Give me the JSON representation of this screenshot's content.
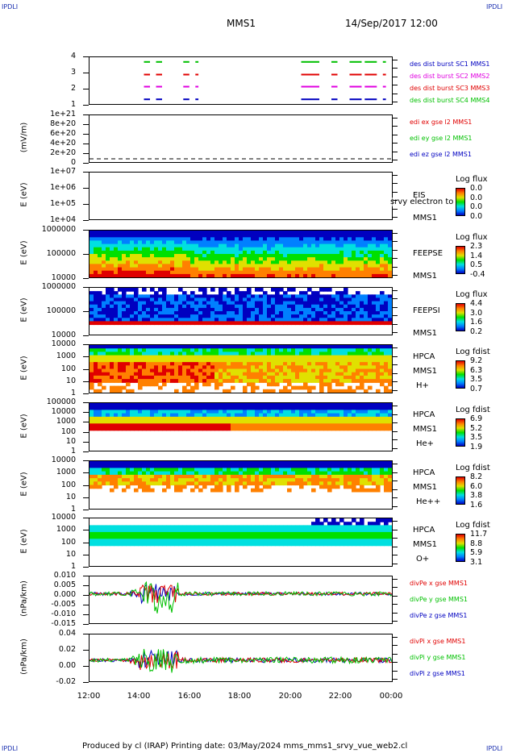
{
  "corners": {
    "tl": "IPDLI",
    "tr": "IPDLI",
    "bl": "IPDLI",
    "br": "IPDLI"
  },
  "header": {
    "mission": "MMS1",
    "date": "14/Sep/2017 12:00"
  },
  "footer": "Produced by cl (IRAP)   Printing date: 03/May/2024   mms_mms1_srvy_vue_web2.cl",
  "x_axis": {
    "ticks": [
      "12:00",
      "14:00",
      "16:00",
      "18:00",
      "20:00",
      "22:00",
      "00:00"
    ]
  },
  "colors": {
    "red": "#e00000",
    "green": "#00c000",
    "blue": "#0000c0",
    "magenta": "#e000e0",
    "spectrum": [
      "#0000c0",
      "#0080ff",
      "#00e0e0",
      "#00e000",
      "#e0e000",
      "#ff8000",
      "#e00000"
    ]
  },
  "chart_data": [
    {
      "type": "line",
      "name": "burst",
      "ylabel": "",
      "yticks": [
        "4",
        "3",
        "2",
        "1"
      ],
      "legend": [
        "des dist burst SC1 MMS1",
        "des dist burst SC2 MMS2",
        "des dist burst SC3 MMS3",
        "des dist burst SC4 MMS4"
      ],
      "legend_colors": [
        "#0000c0",
        "#e000e0",
        "#e00000",
        "#00c000"
      ]
    },
    {
      "type": "line",
      "name": "edi",
      "ylabel": "(mV/m)",
      "yticks": [
        "1e+21",
        "8e+20",
        "6e+20",
        "4e+20",
        "2e+20",
        "0"
      ],
      "legend": [
        "edi ex gse l2 MMS1",
        "edi ey gse l2 MMS1",
        "edi ez gse l2 MMS1"
      ],
      "legend_colors": [
        "#e00000",
        "#00c000",
        "#0000c0"
      ]
    },
    {
      "type": "heatmap",
      "name": "eis",
      "ylabel": "E (eV)",
      "yticks": [
        "1e+07",
        "1e+06",
        "1e+05",
        "1e+04"
      ],
      "side": [
        "EIS",
        "MMS1"
      ],
      "overlay": "srvy electron to",
      "cbar_title": "Log flux",
      "cbar_ticks": [
        "0.0",
        "0.0",
        "0.0",
        "0.0"
      ]
    },
    {
      "type": "heatmap",
      "name": "feepse",
      "ylabel": "E (eV)",
      "yticks": [
        "1000000",
        "100000",
        "10000"
      ],
      "side": [
        "FEEPSE",
        "MMS1"
      ],
      "cbar_title": "Log flux",
      "cbar_ticks": [
        "2.3",
        "1.4",
        "0.5",
        "-0.4"
      ]
    },
    {
      "type": "heatmap",
      "name": "feepsi",
      "ylabel": "E (eV)",
      "yticks": [
        "1000000",
        "100000",
        "10000"
      ],
      "side": [
        "FEEPSI",
        "MMS1"
      ],
      "cbar_title": "Log flux",
      "cbar_ticks": [
        "4.4",
        "3.0",
        "1.6",
        "0.2"
      ]
    },
    {
      "type": "heatmap",
      "name": "hpca-h",
      "ylabel": "E (eV)",
      "yticks": [
        "10000",
        "1000",
        "100",
        "10",
        "1"
      ],
      "side": [
        "HPCA",
        "MMS1",
        "H+"
      ],
      "cbar_title": "Log fdist",
      "cbar_ticks": [
        "9.2",
        "6.3",
        "3.5",
        "0.7"
      ]
    },
    {
      "type": "heatmap",
      "name": "hpca-he",
      "ylabel": "E (eV)",
      "yticks": [
        "100000",
        "10000",
        "1000",
        "100",
        "10",
        "1"
      ],
      "side": [
        "HPCA",
        "MMS1",
        "He+"
      ],
      "cbar_title": "Log fdist",
      "cbar_ticks": [
        "6.9",
        "5.2",
        "3.5",
        "1.9"
      ]
    },
    {
      "type": "heatmap",
      "name": "hpca-he2",
      "ylabel": "E (eV)",
      "yticks": [
        "10000",
        "1000",
        "100",
        "10",
        "1"
      ],
      "side": [
        "HPCA",
        "MMS1",
        "He++"
      ],
      "cbar_title": "Log fdist",
      "cbar_ticks": [
        "8.2",
        "6.0",
        "3.8",
        "1.6"
      ]
    },
    {
      "type": "heatmap",
      "name": "hpca-o",
      "ylabel": "E (eV)",
      "yticks": [
        "10000",
        "1000",
        "100",
        "10",
        "1"
      ],
      "side": [
        "HPCA",
        "MMS1",
        "O+"
      ],
      "cbar_title": "Log fdist",
      "cbar_ticks": [
        "11.7",
        "8.8",
        "5.9",
        "3.1"
      ]
    },
    {
      "type": "line",
      "name": "divpe",
      "ylabel": "(nPa/km)",
      "yticks": [
        "0.010",
        "0.005",
        "0.000",
        "-0.005",
        "-0.010",
        "-0.015"
      ],
      "legend": [
        "divPe x gse MMS1",
        "divPe y gse MMS1",
        "divPe z gse MMS1"
      ],
      "legend_colors": [
        "#e00000",
        "#00c000",
        "#0000c0"
      ]
    },
    {
      "type": "line",
      "name": "divpi",
      "ylabel": "(nPa/km)",
      "yticks": [
        "0.04",
        "0.02",
        "0.00",
        "-0.02"
      ],
      "legend": [
        "divPi x gse MMS1",
        "divPi y gse MMS1",
        "divPi z gse MMS1"
      ],
      "legend_colors": [
        "#e00000",
        "#00c000",
        "#0000c0"
      ]
    }
  ]
}
